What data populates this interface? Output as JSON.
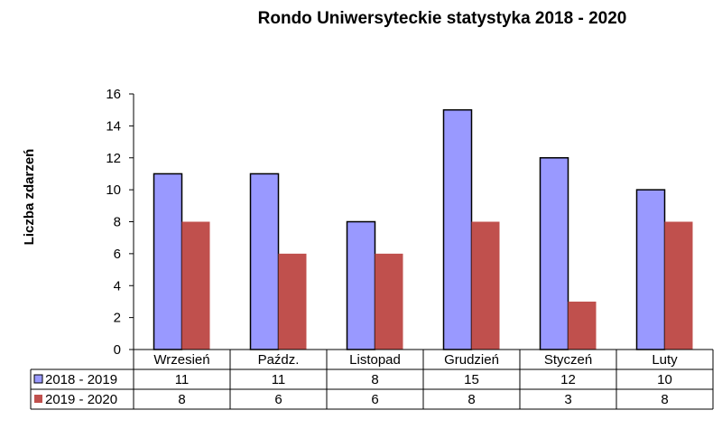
{
  "chart_data": {
    "type": "bar",
    "title": "Rondo Uniwersyteckie statystyka 2018 - 2020",
    "xlabel": "",
    "ylabel": "Liczba zdarzeń",
    "ylim": [
      0,
      16
    ],
    "yticks": [
      0,
      2,
      4,
      6,
      8,
      10,
      12,
      14,
      16
    ],
    "grid": false,
    "legend": "data-table",
    "categories": [
      "Wrzesień",
      "Paźdz.",
      "Listopad",
      "Grudzień",
      "Styczeń",
      "Luty"
    ],
    "series": [
      {
        "name": "2018 - 2019",
        "values": [
          11,
          11,
          8,
          15,
          12,
          10
        ],
        "color": "#9999ff"
      },
      {
        "name": "2019 - 2020",
        "values": [
          8,
          6,
          6,
          8,
          3,
          8
        ],
        "color": "#c0504d"
      }
    ]
  }
}
